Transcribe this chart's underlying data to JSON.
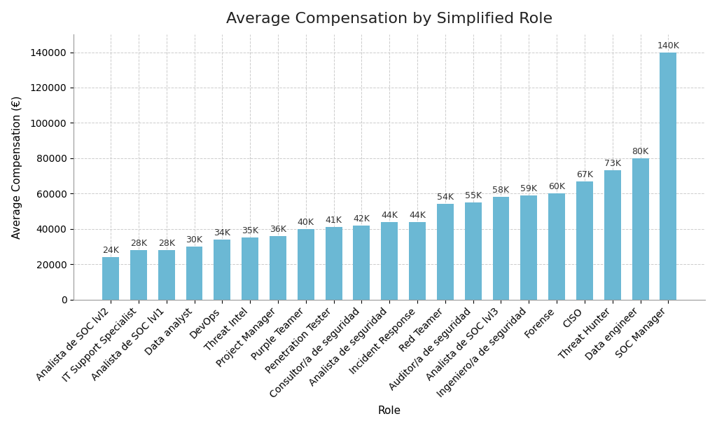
{
  "title": "Average Compensation by Simplified Role",
  "xlabel": "Role",
  "ylabel": "Average Compensation (€)",
  "categories": [
    "Analista de SOC lvl2",
    "IT Support Specialist",
    "Analista de SOC lvl1",
    "Data analyst",
    "DevOps",
    "Threat Intel",
    "Project Manager",
    "Purple Teamer",
    "Penetration Tester",
    "Consultor/a de seguridad",
    "Analista de seguridad",
    "Incident Response",
    "Red Teamer",
    "Auditor/a de seguridad",
    "Analista de SOC lvl3",
    "Ingeniero/a de seguridad",
    "Forense",
    "CISO",
    "Threat Hunter",
    "Data engineer",
    "SOC Manager"
  ],
  "values": [
    24000,
    28000,
    28000,
    30000,
    34000,
    35000,
    36000,
    40000,
    41000,
    42000,
    44000,
    44000,
    54000,
    55000,
    58000,
    59000,
    60000,
    67000,
    73000,
    80000,
    140000
  ],
  "labels": [
    "24K",
    "28K",
    "28K",
    "30K",
    "34K",
    "35K",
    "36K",
    "40K",
    "41K",
    "42K",
    "44K",
    "44K",
    "54K",
    "55K",
    "58K",
    "59K",
    "60K",
    "67K",
    "73K",
    "80K",
    "140K"
  ],
  "bar_color": "#6bb8d4",
  "background_color": "#ffffff",
  "grid_color": "#cccccc",
  "ylim": [
    0,
    150000
  ],
  "yticks": [
    0,
    20000,
    40000,
    60000,
    80000,
    100000,
    120000,
    140000
  ],
  "title_fontsize": 16,
  "label_fontsize": 11,
  "tick_fontsize": 10,
  "bar_label_fontsize": 9,
  "bar_width": 0.6
}
